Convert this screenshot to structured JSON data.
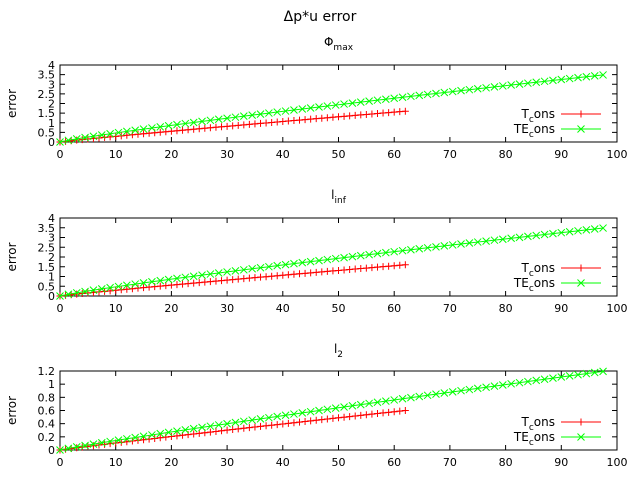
{
  "figure_title": "Δp*u error",
  "colors": {
    "series1": "#ff0000",
    "series2": "#00ff00"
  },
  "chart_data": [
    {
      "type": "line",
      "title": "Φ",
      "title_sub": "max",
      "xlabel": "",
      "ylabel": "error",
      "xlim": [
        0,
        100
      ],
      "ylim": [
        0,
        4
      ],
      "xticks": [
        0,
        10,
        20,
        30,
        40,
        50,
        60,
        70,
        80,
        90,
        100
      ],
      "yticks": [
        0,
        0.5,
        1,
        1.5,
        2,
        2.5,
        3,
        3.5,
        4
      ],
      "ytick_labels": [
        "0",
        "0.5",
        "1",
        "1.5",
        "2",
        "2.5",
        "3",
        "3.5",
        "4"
      ],
      "grid": false,
      "legend_position": "right",
      "series": [
        {
          "name": "T",
          "name_sub": "c",
          "name_rest": "ons",
          "marker": "plus",
          "color": "#ff0000",
          "x_start": 0,
          "x_end": 62,
          "x_step": 1,
          "y_end": 1.6,
          "y_exp": 0.93
        },
        {
          "name": "TE",
          "name_sub": "c",
          "name_rest": "ons",
          "marker": "cross",
          "color": "#00ff00",
          "x_start": 0,
          "x_end": 98,
          "x_step": 1.5,
          "y_end": 3.5,
          "y_exp": 0.88
        }
      ]
    },
    {
      "type": "line",
      "title": "l",
      "title_sub": "inf",
      "xlabel": "",
      "ylabel": "error",
      "xlim": [
        0,
        100
      ],
      "ylim": [
        0,
        4
      ],
      "xticks": [
        0,
        10,
        20,
        30,
        40,
        50,
        60,
        70,
        80,
        90,
        100
      ],
      "yticks": [
        0,
        0.5,
        1,
        1.5,
        2,
        2.5,
        3,
        3.5,
        4
      ],
      "ytick_labels": [
        "0",
        "0.5",
        "1",
        "1.5",
        "2",
        "2.5",
        "3",
        "3.5",
        "4"
      ],
      "grid": false,
      "legend_position": "right",
      "series": [
        {
          "name": "T",
          "name_sub": "c",
          "name_rest": "ons",
          "marker": "plus",
          "color": "#ff0000",
          "x_start": 0,
          "x_end": 62,
          "x_step": 1,
          "y_end": 1.6,
          "y_exp": 0.93
        },
        {
          "name": "TE",
          "name_sub": "c",
          "name_rest": "ons",
          "marker": "cross",
          "color": "#00ff00",
          "x_start": 0,
          "x_end": 98,
          "x_step": 1.5,
          "y_end": 3.5,
          "y_exp": 0.88
        }
      ]
    },
    {
      "type": "line",
      "title": "l",
      "title_sub": "2",
      "xlabel": "",
      "ylabel": "error",
      "xlim": [
        0,
        100
      ],
      "ylim": [
        0,
        1.2
      ],
      "xticks": [
        0,
        10,
        20,
        30,
        40,
        50,
        60,
        70,
        80,
        90,
        100
      ],
      "yticks": [
        0,
        0.2,
        0.4,
        0.6,
        0.8,
        1,
        1.2
      ],
      "ytick_labels": [
        "0",
        "0.2",
        "0.4",
        "0.6",
        "0.8",
        "1",
        "1.2"
      ],
      "grid": false,
      "legend_position": "right",
      "series": [
        {
          "name": "T",
          "name_sub": "c",
          "name_rest": "ons",
          "marker": "plus",
          "color": "#ff0000",
          "x_start": 0,
          "x_end": 62,
          "x_step": 1,
          "y_end": 0.6,
          "y_exp": 0.95
        },
        {
          "name": "TE",
          "name_sub": "c",
          "name_rest": "ons",
          "marker": "cross",
          "color": "#00ff00",
          "x_start": 0,
          "x_end": 98,
          "x_step": 1.5,
          "y_end": 1.2,
          "y_exp": 0.93
        }
      ]
    }
  ]
}
